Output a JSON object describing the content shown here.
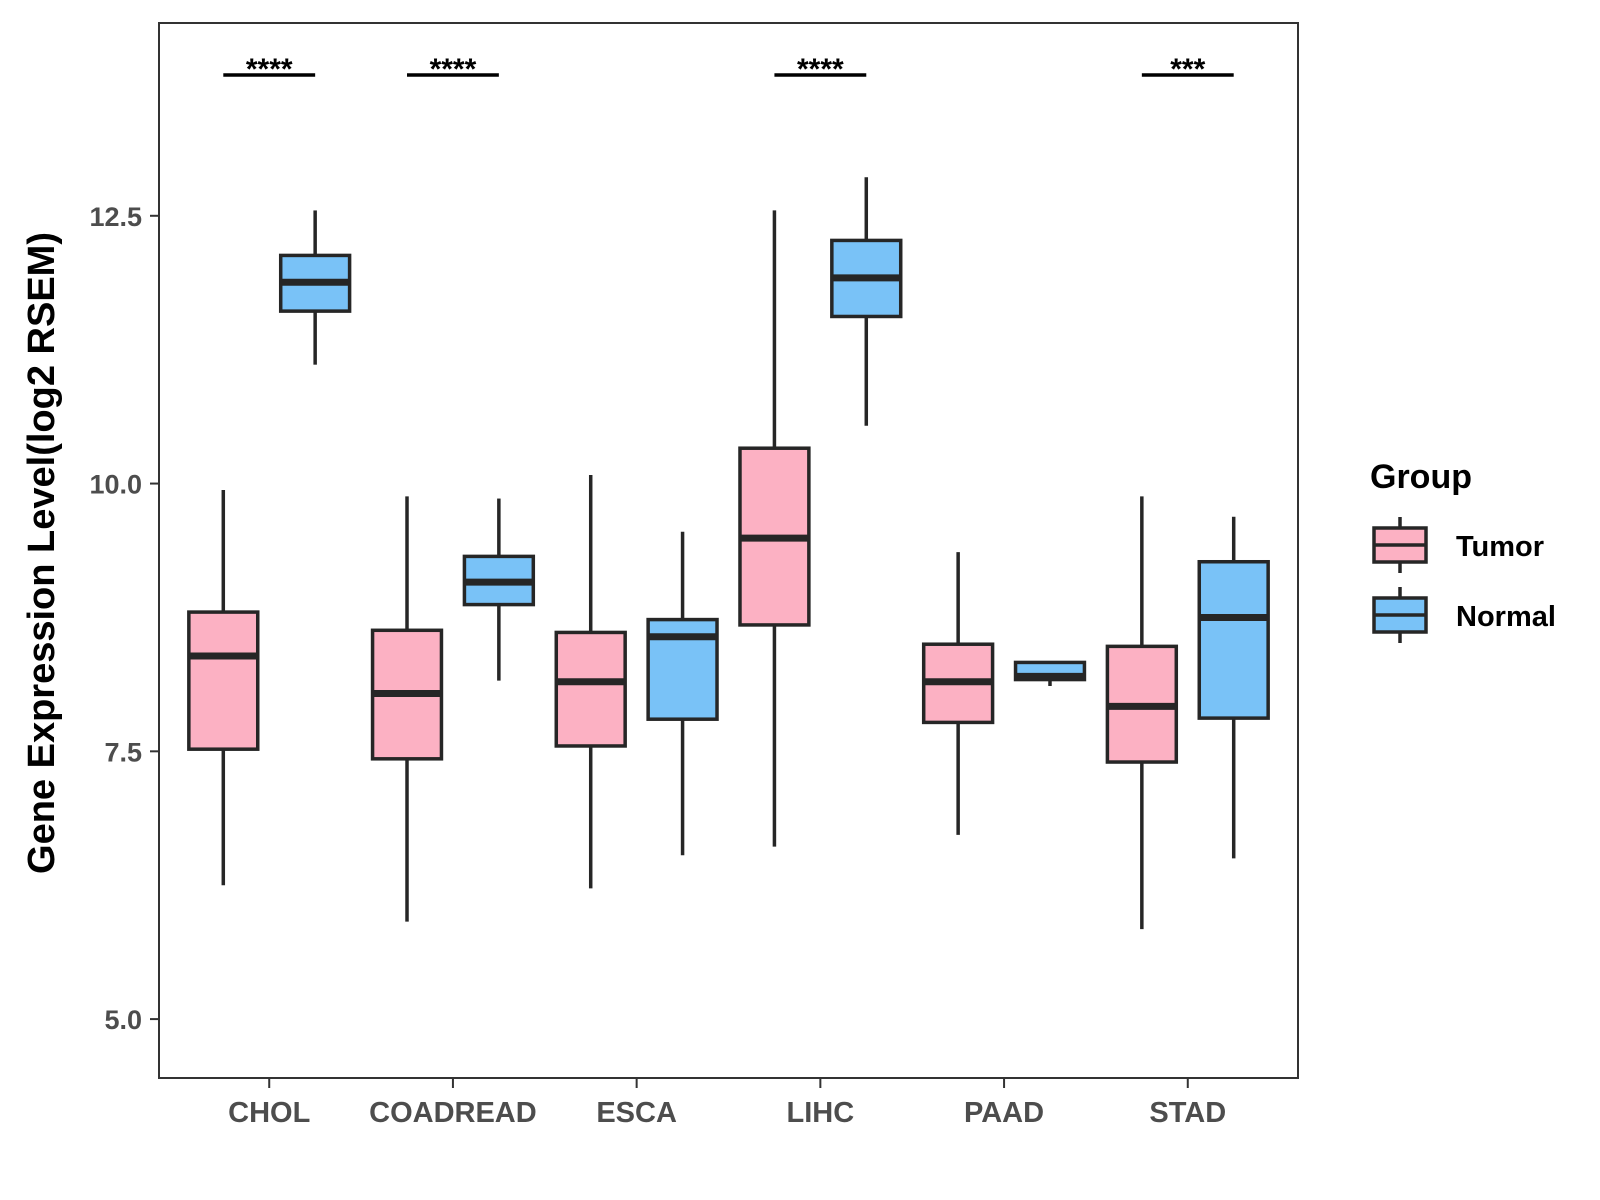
{
  "chart_data": {
    "type": "boxplot",
    "title": "",
    "xlabel": "",
    "ylabel": "Gene Expression Level(log2 RSEM)",
    "ylim": [
      4.45,
      14.3
    ],
    "yticks": [
      5.0,
      7.5,
      10.0,
      12.5
    ],
    "ytick_labels": [
      "5.0",
      "7.5",
      "10.0",
      "12.5"
    ],
    "grid": false,
    "categories": [
      "CHOL",
      "COADREAD",
      "ESCA",
      "LIHC",
      "PAAD",
      "STAD"
    ],
    "legend": {
      "title": "Group",
      "placement": "right",
      "entries": [
        {
          "name": "Tumor",
          "color": "#FCB1C3"
        },
        {
          "name": "Normal",
          "color": "#79C2F7"
        }
      ]
    },
    "series": [
      {
        "name": "Tumor",
        "color": "#FCB1C3",
        "boxes": [
          {
            "min": 6.25,
            "q1": 7.52,
            "median": 8.39,
            "q3": 8.8,
            "max": 9.94
          },
          {
            "min": 5.91,
            "q1": 7.43,
            "median": 8.04,
            "q3": 8.63,
            "max": 9.88
          },
          {
            "min": 6.22,
            "q1": 7.55,
            "median": 8.15,
            "q3": 8.61,
            "max": 10.08
          },
          {
            "min": 6.61,
            "q1": 8.68,
            "median": 9.49,
            "q3": 10.33,
            "max": 12.55
          },
          {
            "min": 6.72,
            "q1": 7.77,
            "median": 8.15,
            "q3": 8.5,
            "max": 9.36
          },
          {
            "min": 5.84,
            "q1": 7.4,
            "median": 7.92,
            "q3": 8.48,
            "max": 9.88
          }
        ]
      },
      {
        "name": "Normal",
        "color": "#79C2F7",
        "boxes": [
          {
            "min": 11.11,
            "q1": 11.61,
            "median": 11.88,
            "q3": 12.13,
            "max": 12.55
          },
          {
            "min": 8.16,
            "q1": 8.87,
            "median": 9.08,
            "q3": 9.32,
            "max": 9.86
          },
          {
            "min": 6.53,
            "q1": 7.8,
            "median": 8.57,
            "q3": 8.73,
            "max": 9.55
          },
          {
            "min": 10.54,
            "q1": 11.56,
            "median": 11.92,
            "q3": 12.27,
            "max": 12.86
          },
          {
            "min": 8.11,
            "q1": 8.17,
            "median": 8.2,
            "q3": 8.33,
            "max": 8.33
          },
          {
            "min": 6.5,
            "q1": 7.81,
            "median": 8.75,
            "q3": 9.27,
            "max": 9.69
          }
        ]
      }
    ],
    "significance": [
      "****",
      "****",
      "",
      "****",
      "",
      "***"
    ]
  }
}
